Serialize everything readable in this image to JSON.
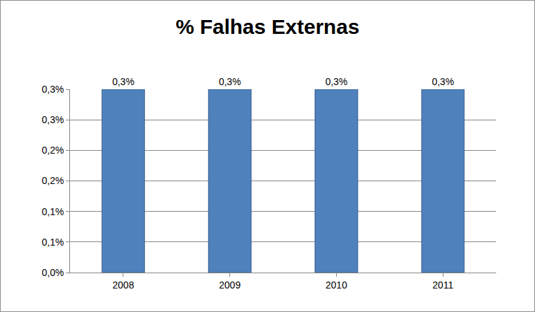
{
  "chart_data": {
    "type": "bar",
    "title": "% Falhas Externas",
    "categories": [
      "2008",
      "2009",
      "2010",
      "2011"
    ],
    "values": [
      0.3,
      0.3,
      0.3,
      0.3
    ],
    "value_labels": [
      "0,3%",
      "0,3%",
      "0,3%",
      "0,3%"
    ],
    "data_labels": true,
    "color": "#4f81bd",
    "ylim": [
      0,
      0.3
    ],
    "yticks": [
      {
        "value": 0,
        "label": "0,0%"
      },
      {
        "value": 0.05,
        "label": "0,1%"
      },
      {
        "value": 0.1,
        "label": "0,1%"
      },
      {
        "value": 0.15,
        "label": "0,2%"
      },
      {
        "value": 0.2,
        "label": "0,2%"
      },
      {
        "value": 0.25,
        "label": "0,3%"
      },
      {
        "value": 0.3,
        "label": "0,3%"
      }
    ],
    "grid": true
  }
}
